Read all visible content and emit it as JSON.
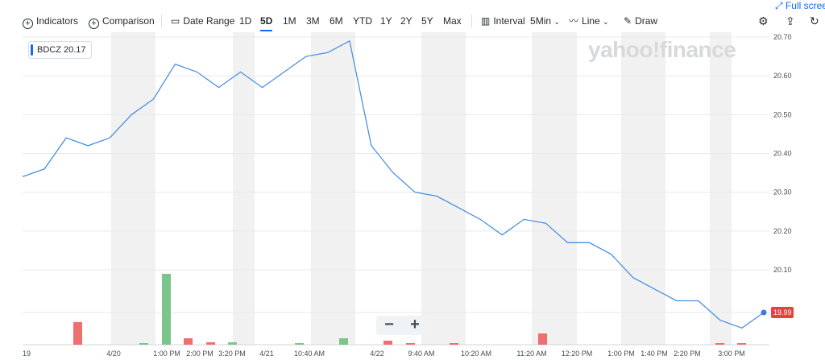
{
  "toolbar": {
    "indicators": "Indicators",
    "comparison": "Comparison",
    "date_range": "Date Range",
    "ranges": [
      "1D",
      "5D",
      "1M",
      "3M",
      "6M",
      "YTD",
      "1Y",
      "2Y",
      "5Y",
      "Max"
    ],
    "active_range": "5D",
    "interval_label": "Interval",
    "interval_value": "5Min",
    "chart_type": "Line",
    "draw": "Draw",
    "fullscreen": "Full screen"
  },
  "watermark": "yahoo!finance",
  "ticker": {
    "symbol": "BDCZ",
    "value": "20.17"
  },
  "last_price_label": "19.99",
  "colors": {
    "line": "#4a90e2",
    "volume_up": "#7ac68a",
    "volume_down": "#ef6f6f",
    "shade": "#f1f1f1",
    "price_tag": "#e8413a",
    "accent": "#0f69ff"
  },
  "chart_data": {
    "type": "line",
    "title": "",
    "xlabel": "",
    "ylabel": "",
    "ylim": [
      19.99,
      20.7
    ],
    "y_ticks": [
      "20.70",
      "20.60",
      "20.50",
      "20.40",
      "20.30",
      "20.20",
      "20.10",
      "19.99"
    ],
    "x_ticks": [
      "19",
      "4/20",
      "1:00 PM",
      "2:00 PM",
      "3:20 PM",
      "4/21",
      "10:40 AM",
      "4/22",
      "9:40 AM",
      "10:20 AM",
      "11:20 AM",
      "12:20 PM",
      "1:00 PM",
      "1:40 PM",
      "2:20 PM",
      "3:00 PM"
    ],
    "series": [
      {
        "values": [
          20.34,
          20.36,
          20.44,
          20.42,
          20.44,
          20.5,
          20.54,
          20.63,
          20.61,
          20.57,
          20.61,
          20.57,
          20.61,
          20.65,
          20.66,
          20.69,
          20.42,
          20.35,
          20.3,
          20.29,
          20.26,
          20.23,
          20.19,
          20.23,
          20.22,
          20.17,
          20.17,
          20.14,
          20.08,
          20.05,
          20.02,
          20.02,
          19.97,
          19.95,
          19.99
        ]
      }
    ],
    "volume": [
      {
        "x": 96,
        "v": 28,
        "dir": "down"
      },
      {
        "x": 178,
        "v": 1,
        "dir": "up"
      },
      {
        "x": 206,
        "v": 88,
        "dir": "up"
      },
      {
        "x": 233,
        "v": 8,
        "dir": "down"
      },
      {
        "x": 261,
        "v": 3,
        "dir": "down"
      },
      {
        "x": 288,
        "v": 3,
        "dir": "up"
      },
      {
        "x": 371,
        "v": 2,
        "dir": "up"
      },
      {
        "x": 426,
        "v": 8,
        "dir": "up"
      },
      {
        "x": 481,
        "v": 5,
        "dir": "down"
      },
      {
        "x": 509,
        "v": 1,
        "dir": "down"
      },
      {
        "x": 563,
        "v": 2,
        "dir": "down"
      },
      {
        "x": 673,
        "v": 14,
        "dir": "down"
      },
      {
        "x": 893,
        "v": 2,
        "dir": "down"
      },
      {
        "x": 920,
        "v": 2,
        "dir": "down"
      }
    ],
    "grid": true
  }
}
